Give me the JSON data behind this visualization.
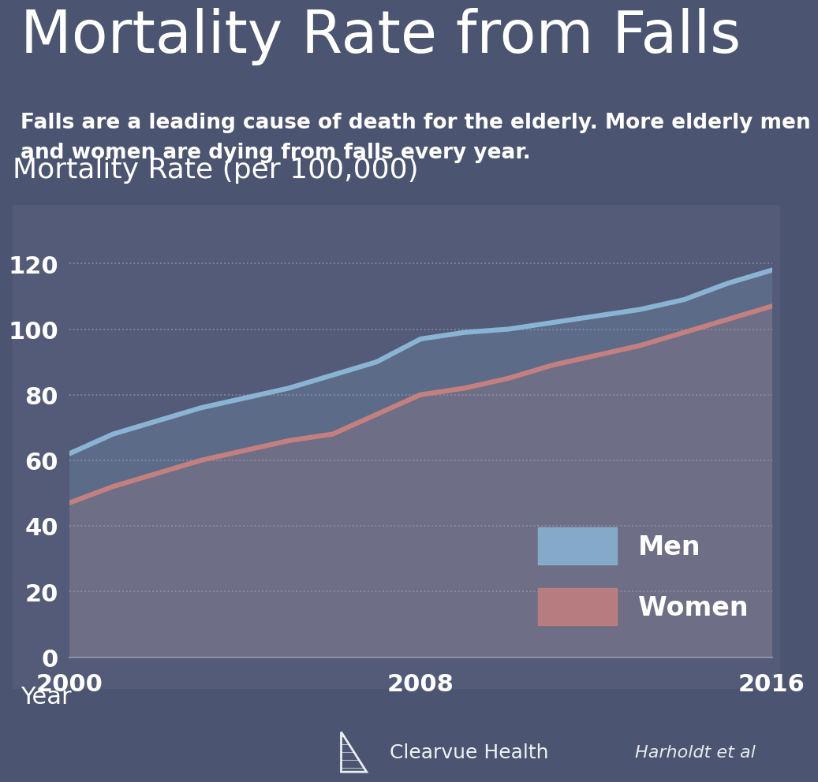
{
  "title": "Mortality Rate from Falls",
  "subtitle": "Falls are a leading cause of death for the elderly. More elderly men\nand women are dying from falls every year.",
  "chart_ylabel": "Mortality Rate (per 100,000)",
  "xlabel": "Year",
  "background_color": "#4b5470",
  "panel_color": "#4e5878",
  "men_years": [
    2000,
    2001,
    2002,
    2003,
    2004,
    2005,
    2006,
    2007,
    2008,
    2009,
    2010,
    2011,
    2012,
    2013,
    2014,
    2015,
    2016
  ],
  "men_values": [
    62,
    68,
    72,
    76,
    79,
    82,
    86,
    90,
    97,
    99,
    100,
    102,
    104,
    106,
    109,
    114,
    118
  ],
  "women_years": [
    2000,
    2001,
    2002,
    2003,
    2004,
    2005,
    2006,
    2007,
    2008,
    2009,
    2010,
    2011,
    2012,
    2013,
    2014,
    2015,
    2016
  ],
  "women_values": [
    47,
    52,
    56,
    60,
    63,
    66,
    68,
    74,
    80,
    82,
    85,
    89,
    92,
    95,
    99,
    103,
    107
  ],
  "men_color": "#8ab4d4",
  "women_color": "#c47f7f",
  "yticks": [
    0,
    20,
    40,
    60,
    80,
    100,
    120
  ],
  "xticks": [
    2000,
    2008,
    2016
  ],
  "ylim": [
    0,
    128
  ],
  "xlim": [
    2000,
    2016
  ],
  "grid_color": "#9099b0",
  "text_color": "#ffffff",
  "line_width": 4.5,
  "footer_brand": "Clearvue Health",
  "footer_citation": "Harholdt et al",
  "title_fontsize": 54,
  "subtitle_fontsize": 19,
  "chart_ylabel_fontsize": 26,
  "tick_fontsize": 22,
  "xlabel_fontsize": 22,
  "legend_fontsize": 24
}
